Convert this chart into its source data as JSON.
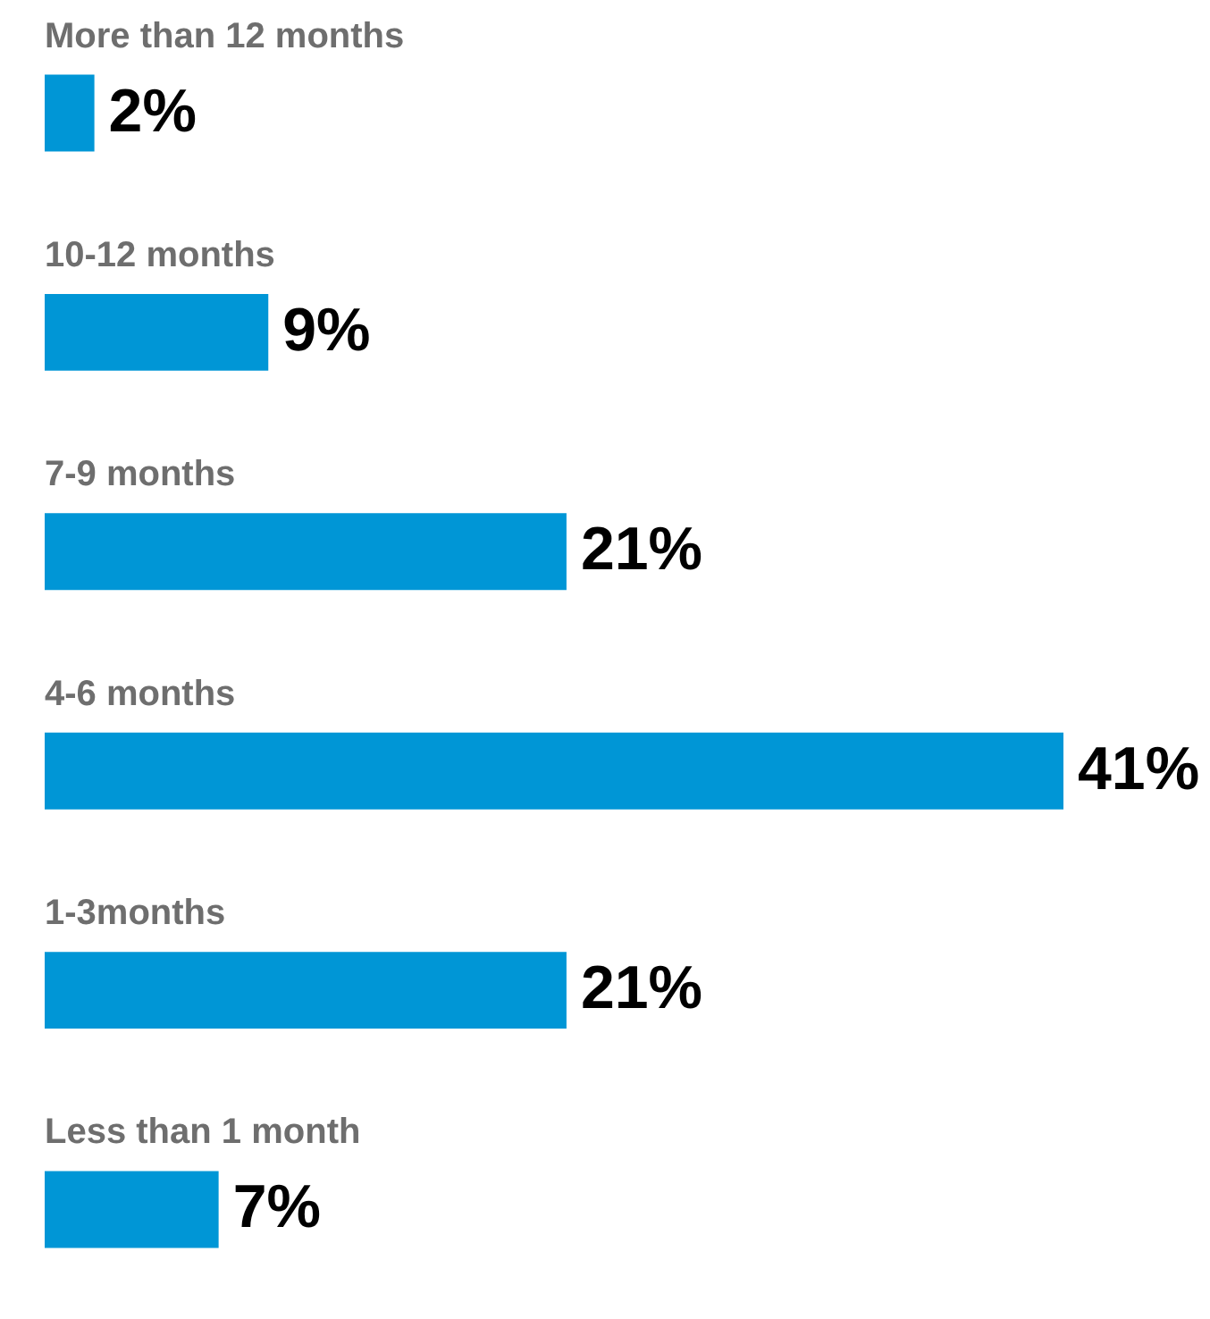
{
  "chart_data": {
    "type": "bar",
    "orientation": "horizontal",
    "categories": [
      "More than 12 months",
      "10-12 months",
      "7-9 months",
      "4-6 months",
      "1-3months",
      "Less than 1 month"
    ],
    "series": [
      {
        "color": "#0096d6",
        "values": [
          2,
          9,
          21,
          41,
          21,
          7
        ],
        "value_labels": [
          "2%",
          "9%",
          "21%",
          "41%",
          "21%",
          "7%"
        ]
      }
    ],
    "tick_labels": false
  }
}
